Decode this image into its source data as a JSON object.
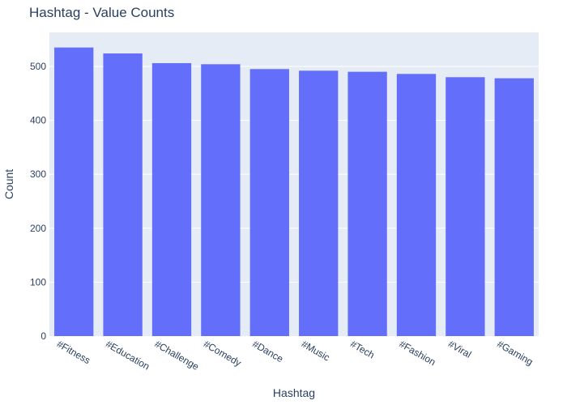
{
  "chart_data": {
    "type": "bar",
    "title": "Hashtag - Value Counts",
    "xlabel": "Hashtag",
    "ylabel": "Count",
    "categories": [
      "#Fitness",
      "#Education",
      "#Challenge",
      "#Comedy",
      "#Dance",
      "#Music",
      "#Tech",
      "#Fashion",
      "#Viral",
      "#Gaming"
    ],
    "values": [
      535,
      524,
      506,
      504,
      495,
      492,
      490,
      486,
      480,
      478
    ],
    "ylim": [
      0,
      563
    ],
    "yticks": [
      0,
      100,
      200,
      300,
      400,
      500
    ],
    "grid": true,
    "colors": {
      "bar": "#636efa",
      "plot_bg": "#e5ecf6",
      "grid": "#ffffff",
      "text": "#2a3f5f"
    }
  }
}
